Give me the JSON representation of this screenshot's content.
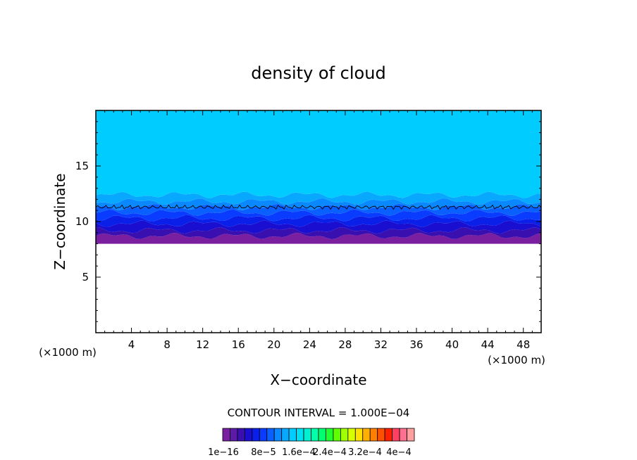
{
  "chart_data": {
    "type": "heatmap",
    "title": "density of cloud",
    "xlabel": "X−coordinate",
    "ylabel": "Z−coordinate",
    "x_unit_left": "(×1000 m)",
    "x_unit_right": "(×1000 m)",
    "xlim": [
      0,
      50
    ],
    "ylim": [
      0,
      20
    ],
    "xticks": [
      4,
      8,
      12,
      16,
      20,
      24,
      28,
      32,
      36,
      40,
      44,
      48
    ],
    "yticks": [
      5,
      10,
      15
    ],
    "contour_interval_text": "CONTOUR INTERVAL = 1.000E−04",
    "colorbar_labels": [
      "1e−16",
      "8e−5",
      "1.6e−4",
      "2.4e−4",
      "3.2e−4",
      "4e−4"
    ],
    "colorbar_colors": [
      "#7a1fa0",
      "#5b1aa8",
      "#3a0fb0",
      "#1a0fd0",
      "#0a20e8",
      "#0a3cff",
      "#0a60ff",
      "#0a88ff",
      "#08a8ff",
      "#00ccff",
      "#00e0f0",
      "#00f0d0",
      "#00ffa8",
      "#00ff70",
      "#20ff30",
      "#60ff00",
      "#a0ff00",
      "#d8ff00",
      "#ffe000",
      "#ffb000",
      "#ff8000",
      "#ff5000",
      "#ff2000",
      "#ff4060",
      "#ff7090",
      "#ffa0a0"
    ],
    "layers": [
      {
        "z_bottom": 8.0,
        "z_top": 8.7,
        "color": "#7a1fa0"
      },
      {
        "z_bottom": 8.7,
        "z_top": 9.2,
        "color": "#3a0fb0"
      },
      {
        "z_bottom": 9.2,
        "z_top": 9.8,
        "color": "#1a0fd0"
      },
      {
        "z_bottom": 9.8,
        "z_top": 10.3,
        "color": "#0a20e8"
      },
      {
        "z_bottom": 10.3,
        "z_top": 10.8,
        "color": "#0a3cff"
      },
      {
        "z_bottom": 10.8,
        "z_top": 11.3,
        "color": "#0a60ff"
      },
      {
        "z_bottom": 11.3,
        "z_top": 11.8,
        "color": "#0a88ff"
      },
      {
        "z_bottom": 11.8,
        "z_top": 12.4,
        "color": "#08a8ff"
      },
      {
        "z_bottom": 12.4,
        "z_top": 20.0,
        "color": "#00ccff"
      }
    ],
    "contour_line_z": 11.3
  }
}
